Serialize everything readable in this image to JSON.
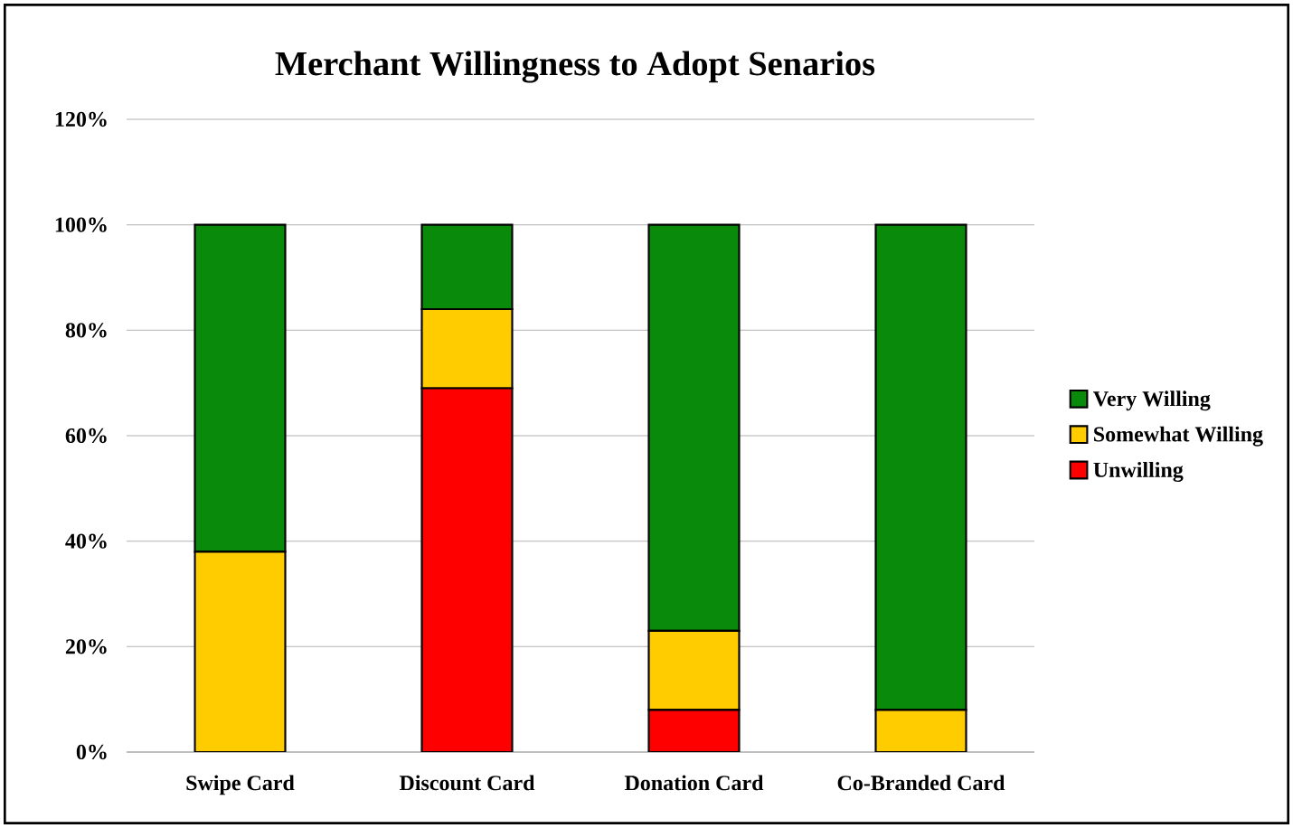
{
  "chart_data": {
    "type": "bar",
    "title": "Merchant Willingness to Adopt Senarios",
    "stacked": true,
    "categories": [
      "Swipe Card",
      "Discount Card",
      "Donation Card",
      "Co-Branded Card"
    ],
    "series": [
      {
        "name": "Unwilling",
        "color": "#ff0000",
        "values": [
          0,
          69,
          8,
          0
        ]
      },
      {
        "name": "Somewhat Willing",
        "color": "#ffcc00",
        "values": [
          38,
          15,
          15,
          8
        ]
      },
      {
        "name": "Very Willing",
        "color": "#0a8a0a",
        "values": [
          62,
          16,
          77,
          92
        ]
      }
    ],
    "ylim": [
      0,
      120
    ],
    "yticks": [
      {
        "value": 0,
        "label": "0%"
      },
      {
        "value": 20,
        "label": "20%"
      },
      {
        "value": 40,
        "label": "40%"
      },
      {
        "value": 60,
        "label": "60%"
      },
      {
        "value": 80,
        "label": "80%"
      },
      {
        "value": 100,
        "label": "100%"
      },
      {
        "value": 120,
        "label": "120%"
      }
    ],
    "grid": "y",
    "legend": "right"
  }
}
